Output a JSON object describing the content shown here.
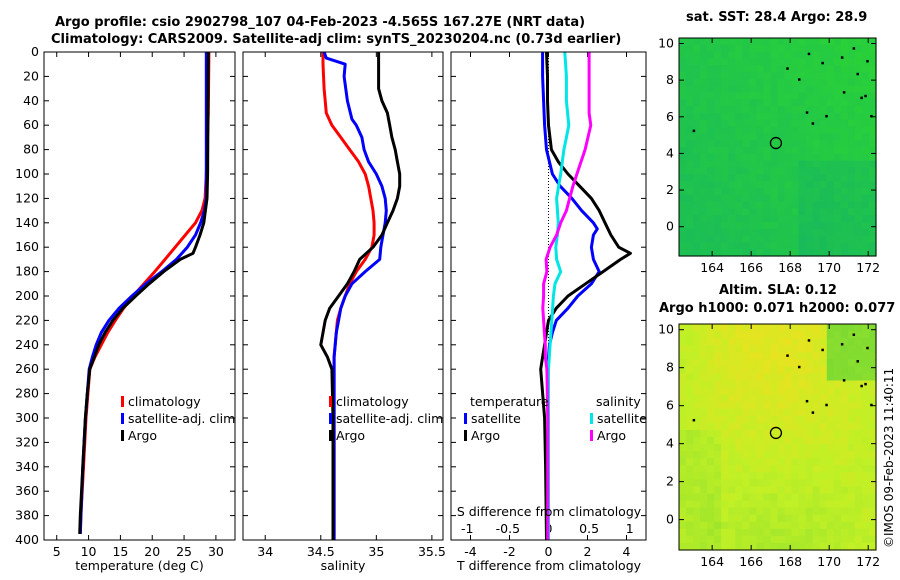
{
  "titles": {
    "line1": "Argo profile: csio 2902798_107 04-Feb-2023 -4.565S 167.27E (NRT data)",
    "line2": "Climatology: CARS2009. Satellite-adj clim: synTS_20230204.nc (0.73d earlier)",
    "sst": "sat. SST: 28.4 Argo: 28.9",
    "sla1": "Altim. SLA: 0.12",
    "sla2": "Argo h1000: 0.071 h2000: 0.077"
  },
  "credit": "©IMOS 09-Feb-2023 11:40:11",
  "colors": {
    "climatology": "#ff0000",
    "satellite": "#0000ff",
    "argo": "#000000",
    "sal_satellite": "#00e5e5",
    "sal_argo": "#ff00ff"
  },
  "legends": {
    "temp": [
      "climatology",
      "satellite-adj. clim",
      "Argo"
    ],
    "sal": [
      "climatology",
      "satellite-adj. clim",
      "Argo"
    ],
    "diff_temp_header": "temperature",
    "diff_sal_header": "salinity",
    "diff_temp": [
      "satellite",
      "Argo"
    ],
    "diff_sal": [
      "satellite",
      "Argo"
    ]
  },
  "chart_data": [
    {
      "type": "line",
      "id": "temperature",
      "xlabel": "temperature (deg C)",
      "ylabel": "",
      "xlim": [
        3,
        33
      ],
      "ylim": [
        0,
        400
      ],
      "xticks": [
        5,
        10,
        15,
        20,
        25,
        30
      ],
      "yticks": [
        0,
        20,
        40,
        60,
        80,
        100,
        120,
        140,
        160,
        180,
        200,
        220,
        240,
        260,
        280,
        300,
        320,
        340,
        360,
        380,
        400
      ],
      "series": [
        {
          "name": "climatology",
          "color": "#ff0000",
          "depth": [
            0,
            50,
            100,
            120,
            130,
            140,
            150,
            160,
            170,
            180,
            190,
            200,
            210,
            220,
            230,
            240,
            250,
            260,
            280,
            300,
            340,
            380,
            395
          ],
          "values": [
            28.9,
            28.8,
            28.5,
            28.3,
            27.8,
            26.8,
            25.2,
            23.6,
            22.0,
            20.4,
            18.7,
            17.0,
            15.5,
            14.2,
            13.0,
            12.0,
            11.0,
            10.2,
            9.9,
            9.6,
            9.2,
            8.8,
            8.7
          ]
        },
        {
          "name": "satellite-adj. clim",
          "color": "#0000ff",
          "depth": [
            0,
            100,
            120,
            130,
            140,
            150,
            160,
            170,
            180,
            190,
            200,
            210,
            220,
            230,
            240,
            250,
            260,
            280,
            300,
            340,
            380,
            395
          ],
          "values": [
            28.5,
            28.5,
            28.5,
            28.2,
            27.6,
            26.8,
            25.5,
            23.8,
            21.5,
            19.0,
            16.8,
            14.8,
            13.2,
            12.0,
            11.2,
            10.6,
            10.1,
            9.8,
            9.5,
            9.1,
            8.8,
            8.7
          ]
        },
        {
          "name": "Argo",
          "color": "#000000",
          "depth": [
            0,
            100,
            120,
            140,
            150,
            160,
            165,
            170,
            180,
            190,
            200,
            210,
            220,
            230,
            240,
            250,
            260,
            280,
            300,
            340,
            380,
            395
          ],
          "values": [
            28.8,
            28.7,
            28.6,
            28.1,
            27.5,
            26.8,
            26.4,
            24.4,
            21.8,
            19.5,
            17.4,
            15.4,
            13.8,
            12.6,
            11.6,
            10.9,
            10.2,
            9.8,
            9.5,
            9.1,
            8.7,
            8.6
          ]
        }
      ]
    },
    {
      "type": "line",
      "id": "salinity",
      "xlabel": "salinity",
      "xlim": [
        33.8,
        35.6
      ],
      "ylim": [
        0,
        400
      ],
      "xticks": [
        34,
        34.5,
        35,
        35.5
      ],
      "series": [
        {
          "name": "climatology",
          "color": "#ff0000",
          "depth": [
            0,
            10,
            30,
            50,
            60,
            70,
            80,
            90,
            100,
            110,
            120,
            130,
            140,
            150,
            160,
            170,
            180,
            190,
            200,
            210,
            220,
            230,
            240,
            250,
            260,
            300,
            400
          ],
          "values": [
            34.52,
            34.52,
            34.53,
            34.55,
            34.6,
            34.68,
            34.76,
            34.84,
            34.9,
            34.93,
            34.95,
            34.97,
            34.98,
            34.98,
            34.96,
            34.9,
            34.82,
            34.76,
            34.72,
            34.68,
            34.65,
            34.64,
            34.63,
            34.62,
            34.62,
            34.62,
            34.62
          ]
        },
        {
          "name": "satellite-adj. clim",
          "color": "#0000ff",
          "depth": [
            0,
            5,
            10,
            20,
            40,
            55,
            60,
            70,
            80,
            90,
            100,
            110,
            120,
            130,
            140,
            150,
            160,
            170,
            180,
            190,
            200,
            210,
            220,
            230,
            240,
            250,
            260,
            300,
            400
          ],
          "values": [
            34.53,
            34.55,
            34.72,
            34.71,
            34.74,
            34.78,
            34.82,
            34.87,
            34.89,
            34.93,
            35.0,
            35.05,
            35.08,
            35.09,
            35.08,
            35.06,
            35.04,
            35.03,
            34.9,
            34.78,
            34.72,
            34.68,
            34.66,
            34.64,
            34.63,
            34.62,
            34.62,
            34.62,
            34.62
          ]
        },
        {
          "name": "Argo",
          "color": "#000000",
          "depth": [
            0,
            20,
            30,
            40,
            50,
            60,
            70,
            80,
            90,
            100,
            110,
            120,
            130,
            140,
            150,
            160,
            170,
            180,
            190,
            200,
            210,
            220,
            230,
            240,
            250,
            260,
            300,
            400
          ],
          "values": [
            35.02,
            35.02,
            35.02,
            35.05,
            35.1,
            35.12,
            35.14,
            35.17,
            35.19,
            35.21,
            35.21,
            35.19,
            35.15,
            35.1,
            35.05,
            34.97,
            34.85,
            34.8,
            34.74,
            34.66,
            34.58,
            34.54,
            34.52,
            34.5,
            34.56,
            34.6,
            34.61,
            34.61
          ]
        }
      ]
    },
    {
      "type": "line",
      "id": "difference",
      "xlabel": "T difference from climatology",
      "xlabel_top": "S difference from climatology",
      "xlim": [
        -5,
        5
      ],
      "ylim": [
        0,
        400
      ],
      "xticks": [
        -4,
        -2,
        0,
        2,
        4
      ],
      "xticks_top": [
        -1,
        -0.5,
        0,
        0.5,
        1
      ],
      "xticklabels_top": [
        "-1",
        "-0.5",
        "0",
        "0.5",
        "1"
      ],
      "series": [
        {
          "name": "T satellite",
          "color": "#0000ff",
          "depth": [
            0,
            10,
            20,
            40,
            60,
            80,
            100,
            110,
            120,
            130,
            140,
            145,
            150,
            160,
            170,
            180,
            190,
            200,
            210,
            220,
            230,
            240,
            250,
            260,
            280,
            300,
            340,
            400
          ],
          "values": [
            -0.3,
            -0.3,
            -0.3,
            -0.25,
            -0.2,
            -0.1,
            0.2,
            0.6,
            1.2,
            1.7,
            2.3,
            2.5,
            2.3,
            2.2,
            2.3,
            2.6,
            2.2,
            1.5,
            1.0,
            0.4,
            0.2,
            0.05,
            0.0,
            0.0,
            0.0,
            0.0,
            0.0,
            0.0
          ]
        },
        {
          "name": "T Argo",
          "color": "#000000",
          "depth": [
            0,
            20,
            40,
            60,
            80,
            90,
            100,
            110,
            120,
            130,
            140,
            150,
            160,
            165,
            170,
            180,
            190,
            200,
            210,
            220,
            230,
            240,
            250,
            260,
            300,
            340,
            400
          ],
          "values": [
            -0.1,
            -0.05,
            -0.05,
            0.0,
            0.15,
            0.5,
            1.0,
            1.6,
            2.2,
            2.6,
            2.9,
            3.2,
            3.6,
            4.2,
            3.7,
            2.8,
            1.9,
            1.0,
            0.4,
            0.0,
            -0.1,
            -0.2,
            -0.3,
            -0.4,
            -0.2,
            -0.15,
            -0.1
          ]
        },
        {
          "name": "S satellite",
          "color": "#00e5e5",
          "depth": [
            0,
            20,
            40,
            60,
            70,
            80,
            100,
            120,
            140,
            150,
            160,
            170,
            180,
            190,
            200,
            220,
            240,
            260,
            300,
            400
          ],
          "values": [
            0.2,
            0.22,
            0.22,
            0.25,
            0.22,
            0.19,
            0.15,
            0.1,
            0.12,
            0.11,
            0.09,
            0.1,
            0.15,
            0.08,
            0.06,
            0.04,
            0.02,
            0.0,
            0.0,
            0.0
          ]
        },
        {
          "name": "S Argo",
          "color": "#ff00ff",
          "depth": [
            0,
            20,
            40,
            50,
            60,
            80,
            100,
            110,
            120,
            130,
            140,
            150,
            160,
            170,
            180,
            190,
            200,
            210,
            220,
            230,
            240,
            250,
            260,
            300,
            400
          ],
          "values": [
            0.5,
            0.5,
            0.5,
            0.5,
            0.52,
            0.45,
            0.35,
            0.3,
            0.26,
            0.22,
            0.15,
            0.1,
            0.02,
            -0.03,
            -0.02,
            -0.06,
            -0.06,
            -0.07,
            -0.06,
            -0.05,
            -0.04,
            -0.04,
            -0.02,
            -0.01,
            -0.01
          ]
        }
      ]
    },
    {
      "type": "heatmap",
      "id": "sst_map",
      "title": "sat. SST: 28.4 Argo: 28.9",
      "xlim": [
        162.3,
        172.4
      ],
      "ylim": [
        -1.6,
        10.3
      ],
      "xticks": [
        164,
        166,
        168,
        170,
        172
      ],
      "yticks": [
        0,
        2,
        4,
        6,
        8,
        10
      ],
      "argo_position": {
        "lon": 167.27,
        "lat": 4.565
      }
    },
    {
      "type": "heatmap",
      "id": "sla_map",
      "title": "Altim. SLA: 0.12",
      "subtitle": "Argo h1000: 0.071 h2000: 0.077",
      "xlim": [
        162.3,
        172.4
      ],
      "ylim": [
        -1.6,
        10.3
      ],
      "xticks": [
        164,
        166,
        168,
        170,
        172
      ],
      "yticks": [
        0,
        2,
        4,
        6,
        8,
        10
      ],
      "argo_position": {
        "lon": 167.27,
        "lat": 4.565
      }
    }
  ]
}
